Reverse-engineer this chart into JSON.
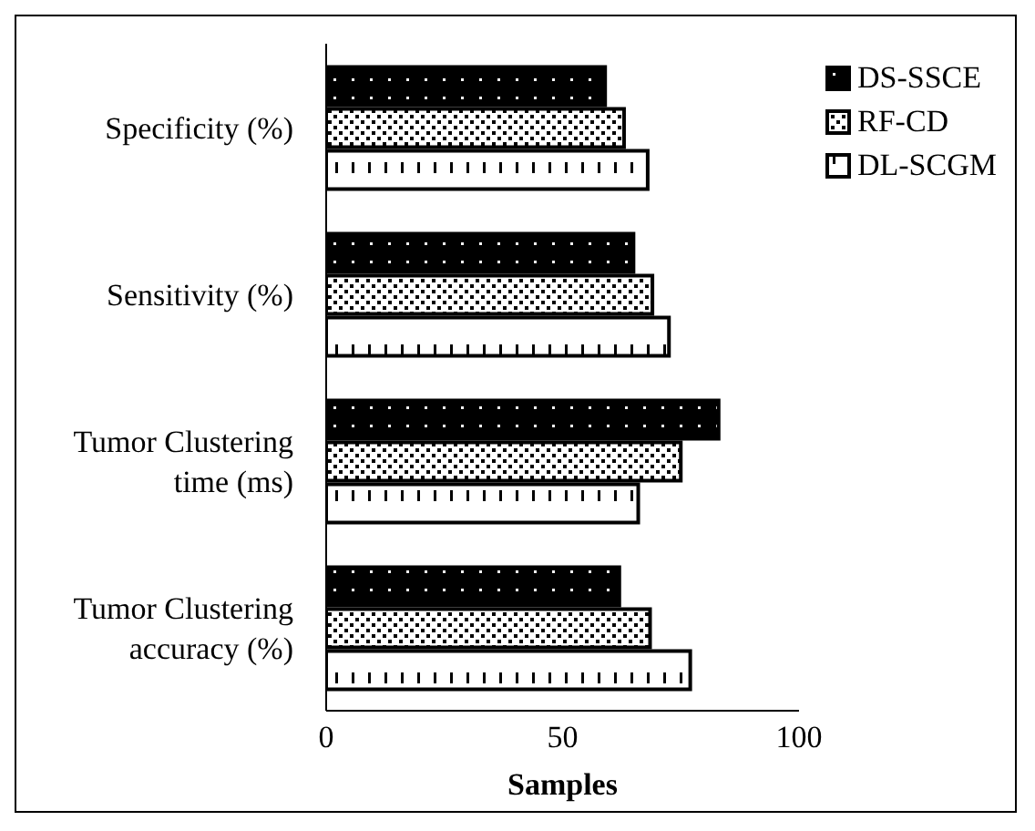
{
  "chart_data": {
    "type": "bar",
    "orientation": "horizontal",
    "xlabel": "Samples",
    "categories": [
      "Specificity (%)",
      "Sensitivity (%)",
      "Tumor Clustering time (ms)",
      "Tumor Clustering accuracy (%)"
    ],
    "series": [
      {
        "name": "DS-SSCE",
        "color": "#000000",
        "values": [
          59,
          65,
          83,
          62
        ]
      },
      {
        "name": "RF-CD",
        "color": "#000000",
        "values": [
          63,
          69,
          75,
          68.5
        ]
      },
      {
        "name": "DL-SCGM",
        "color": "#000000",
        "values": [
          68,
          72.5,
          66,
          77
        ]
      }
    ],
    "xlim": [
      0,
      100
    ],
    "xticks": [
      0,
      50,
      100
    ],
    "grid": false,
    "legend": "top right"
  }
}
